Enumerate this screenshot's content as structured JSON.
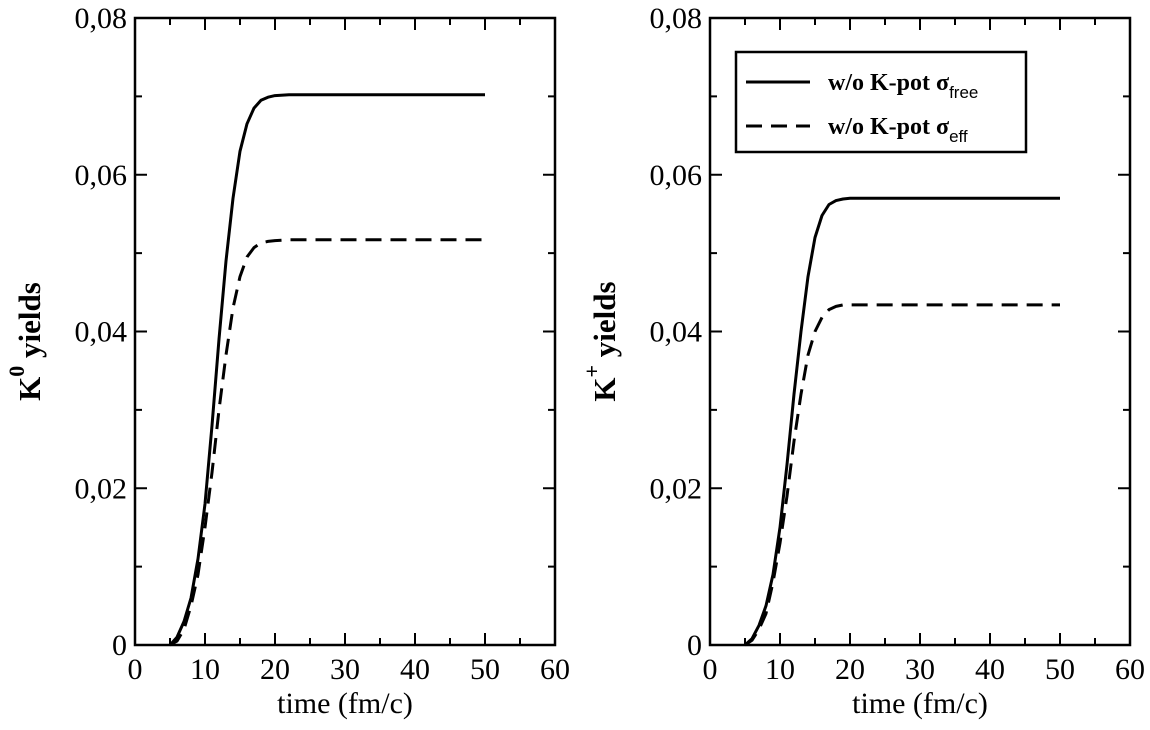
{
  "chart_data": [
    {
      "type": "line",
      "xlabel": "time (fm/c)",
      "ylabel": {
        "base": "K",
        "sup": "0",
        "rest": " yields"
      },
      "xlim": [
        0,
        60
      ],
      "ylim": [
        0,
        0.08
      ],
      "xticks": [
        0,
        10,
        20,
        30,
        40,
        50,
        60
      ],
      "xtick_labels": [
        "0",
        "10",
        "20",
        "30",
        "40",
        "50",
        "60"
      ],
      "yticks": [
        0,
        0.02,
        0.04,
        0.06,
        0.08
      ],
      "ytick_labels": [
        "0",
        "0,02",
        "0,04",
        "0,06",
        "0,08"
      ],
      "grid": false,
      "legend": null,
      "series": [
        {
          "style": "solid",
          "x": [
            5,
            6,
            7,
            8,
            9,
            10,
            11,
            12,
            13,
            14,
            15,
            16,
            17,
            18,
            19,
            20,
            22,
            25,
            30,
            40,
            50
          ],
          "y": [
            0,
            0.001,
            0.003,
            0.006,
            0.011,
            0.018,
            0.028,
            0.039,
            0.049,
            0.057,
            0.063,
            0.0665,
            0.0685,
            0.0695,
            0.0699,
            0.0701,
            0.0702,
            0.0702,
            0.0702,
            0.0702,
            0.0702
          ]
        },
        {
          "style": "dashed",
          "x": [
            5,
            6,
            7,
            8,
            9,
            10,
            11,
            12,
            13,
            14,
            15,
            16,
            17,
            18,
            19,
            20,
            22,
            25,
            30,
            40,
            50
          ],
          "y": [
            0,
            0.0005,
            0.002,
            0.005,
            0.009,
            0.015,
            0.022,
            0.03,
            0.037,
            0.043,
            0.047,
            0.0495,
            0.0507,
            0.0513,
            0.0515,
            0.0516,
            0.0517,
            0.0517,
            0.0517,
            0.0517,
            0.0517
          ]
        }
      ]
    },
    {
      "type": "line",
      "xlabel": "time (fm/c)",
      "ylabel": {
        "base": "K",
        "sup": "+",
        "rest": " yields"
      },
      "xlim": [
        0,
        60
      ],
      "ylim": [
        0,
        0.08
      ],
      "xticks": [
        0,
        10,
        20,
        30,
        40,
        50,
        60
      ],
      "xtick_labels": [
        "0",
        "10",
        "20",
        "30",
        "40",
        "50",
        "60"
      ],
      "yticks": [
        0,
        0.02,
        0.04,
        0.06,
        0.08
      ],
      "ytick_labels": [
        "0",
        "0,02",
        "0,04",
        "0,06",
        "0,08"
      ],
      "grid": false,
      "legend": "top",
      "series": [
        {
          "name": "w/o K-pot σfree",
          "style": "solid",
          "label_main": "w/o K-pot σ",
          "label_sub": "free",
          "x": [
            5,
            6,
            7,
            8,
            9,
            10,
            11,
            12,
            13,
            14,
            15,
            16,
            17,
            18,
            19,
            20,
            22,
            25,
            30,
            40,
            50
          ],
          "y": [
            0,
            0.0008,
            0.0025,
            0.005,
            0.009,
            0.015,
            0.023,
            0.032,
            0.04,
            0.047,
            0.052,
            0.0548,
            0.0562,
            0.0567,
            0.0569,
            0.057,
            0.057,
            0.057,
            0.057,
            0.057,
            0.057
          ]
        },
        {
          "name": "w/o K-pot σeff",
          "style": "dashed",
          "label_main": "w/o K-pot σ",
          "label_sub": "eff",
          "x": [
            5,
            6,
            7,
            8,
            9,
            10,
            11,
            12,
            13,
            14,
            15,
            16,
            17,
            18,
            19,
            20,
            22,
            25,
            30,
            40,
            50
          ],
          "y": [
            0,
            0.0006,
            0.002,
            0.004,
            0.008,
            0.013,
            0.019,
            0.026,
            0.032,
            0.037,
            0.04,
            0.0418,
            0.0428,
            0.0432,
            0.0434,
            0.0434,
            0.0434,
            0.0434,
            0.0434,
            0.0434,
            0.0434
          ]
        }
      ]
    }
  ]
}
